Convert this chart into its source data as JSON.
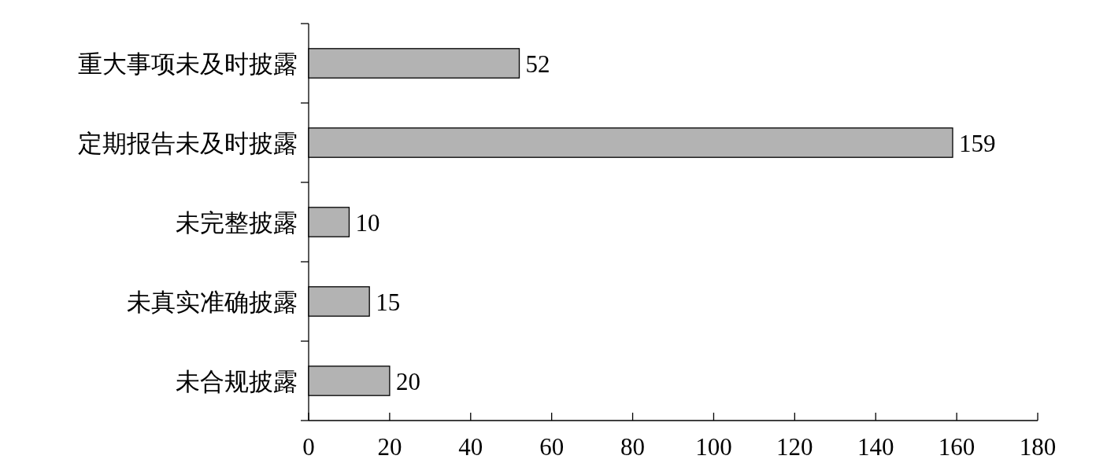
{
  "chart_data": {
    "type": "bar",
    "orientation": "horizontal",
    "categories": [
      "重大事项未及时披露",
      "定期报告未及时披露",
      "未完整披露",
      "未真实准确披露",
      "未合规披露"
    ],
    "values": [
      52,
      159,
      10,
      15,
      20
    ],
    "color": "#b3b3b3",
    "xlim": [
      0,
      180
    ],
    "xticks": [
      0,
      20,
      40,
      60,
      80,
      100,
      120,
      140,
      160,
      180
    ],
    "data_labels": true
  }
}
